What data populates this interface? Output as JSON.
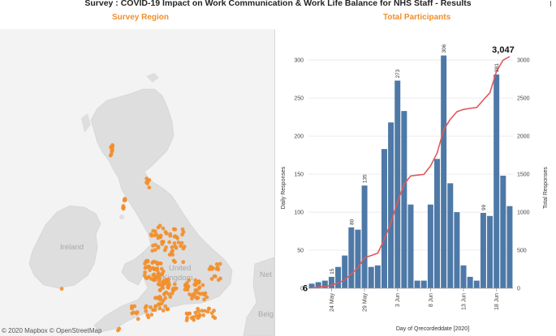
{
  "header": {
    "title": "Survey : COVID-19 Impact on Work Communication & Work Life Balance for NHS Staff - Results"
  },
  "map": {
    "title": "Survey Region",
    "labels": {
      "ireland": "Ireland",
      "united": "United",
      "kingdom": "Kingdom",
      "net": "Net",
      "belg": "Belg"
    },
    "copyright": "© 2020 Mapbox © OpenStreetMap",
    "colors": {
      "land": "#e0e0e0",
      "sea": "#f3f3f3",
      "dots": "#f28e2b"
    }
  },
  "chart": {
    "title": "Total Participants",
    "left_axis_title": "Daily Responses",
    "right_axis_title": "Total Responses",
    "x_axis_title": "Day of Qrecordeddate [2020]",
    "start_label": "6",
    "end_label": "3,047",
    "colors": {
      "bars": "#4e79a7",
      "line": "#e15759",
      "grid": "#e6e6e6"
    }
  },
  "chart_data": {
    "type": "bar",
    "title": "Total Participants",
    "xlabel": "Day of Qrecordeddate [2020]",
    "ylabel": "Daily Responses",
    "y2label": "Total Responses",
    "ylim": [
      0,
      330
    ],
    "y2lim": [
      0,
      3300
    ],
    "yticks": [
      0,
      50,
      100,
      150,
      200,
      250,
      300
    ],
    "y2ticks": [
      0,
      500,
      1000,
      1500,
      2000,
      2500,
      3000
    ],
    "x_ticks": [
      {
        "label": "24 May",
        "index": 3
      },
      {
        "label": "29 May",
        "index": 8
      },
      {
        "label": "3 Jun",
        "index": 13
      },
      {
        "label": "8 Jun",
        "index": 18
      },
      {
        "label": "13 Jun",
        "index": 23
      },
      {
        "label": "18 Jun",
        "index": 28
      }
    ],
    "categories": [
      "21 May",
      "22 May",
      "23 May",
      "24 May",
      "25 May",
      "26 May",
      "27 May",
      "28 May",
      "29 May",
      "30 May",
      "31 May",
      "1 Jun",
      "2 Jun",
      "3 Jun",
      "4 Jun",
      "5 Jun",
      "6 Jun",
      "7 Jun",
      "8 Jun",
      "9 Jun",
      "10 Jun",
      "11 Jun",
      "12 Jun",
      "13 Jun",
      "14 Jun",
      "15 Jun",
      "16 Jun",
      "17 Jun",
      "18 Jun",
      "19 Jun",
      "20 Jun"
    ],
    "series": [
      {
        "name": "Daily Responses",
        "type": "bar",
        "values": [
          6,
          8,
          10,
          15,
          28,
          43,
          80,
          77,
          135,
          28,
          30,
          183,
          218,
          273,
          233,
          110,
          10,
          10,
          110,
          170,
          306,
          138,
          100,
          30,
          15,
          10,
          99,
          95,
          281,
          148,
          108
        ]
      },
      {
        "name": "Total Responses",
        "type": "line",
        "values": [
          6,
          14,
          24,
          39,
          67,
          110,
          190,
          267,
          402,
          430,
          460,
          643,
          861,
          1134,
          1367,
          1477,
          1487,
          1497,
          1607,
          1777,
          2083,
          2221,
          2321,
          2351,
          2366,
          2376,
          2475,
          2570,
          2851,
          2999,
          3047
        ]
      }
    ],
    "labeled_bars": [
      {
        "index": 3,
        "label": "15"
      },
      {
        "index": 6,
        "label": "80"
      },
      {
        "index": 8,
        "label": "135"
      },
      {
        "index": 13,
        "label": "273"
      },
      {
        "index": 20,
        "label": "306"
      },
      {
        "index": 26,
        "label": "99"
      },
      {
        "index": 28,
        "label": "281"
      }
    ]
  }
}
